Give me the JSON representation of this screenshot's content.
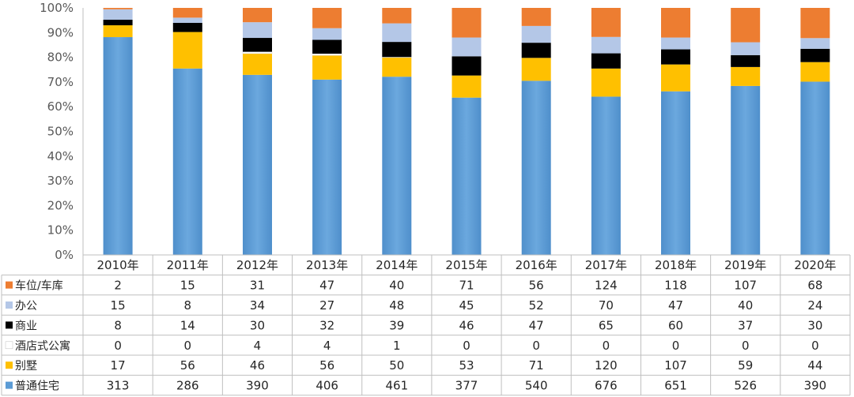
{
  "chart_data": {
    "type": "bar",
    "stacked": "percent",
    "categories": [
      "2010年",
      "2011年",
      "2012年",
      "2013年",
      "2014年",
      "2015年",
      "2016年",
      "2017年",
      "2018年",
      "2019年",
      "2020年"
    ],
    "y_ticks": [
      "0%",
      "10%",
      "20%",
      "30%",
      "40%",
      "50%",
      "60%",
      "70%",
      "80%",
      "90%",
      "100%"
    ],
    "ylim": [
      0,
      100
    ],
    "grid": false,
    "legend_placement": "data-table-left",
    "series": [
      {
        "name": "普通住宅",
        "color": "#5B9BD5",
        "values": [
          313,
          286,
          390,
          406,
          461,
          377,
          540,
          676,
          651,
          526,
          390
        ]
      },
      {
        "name": "别墅",
        "color": "#FFC000",
        "values": [
          17,
          56,
          46,
          56,
          50,
          53,
          71,
          120,
          107,
          59,
          44
        ]
      },
      {
        "name": "酒店式公寓",
        "color": "#FFFFFF",
        "values": [
          0,
          0,
          4,
          4,
          1,
          0,
          0,
          0,
          0,
          0,
          0
        ]
      },
      {
        "name": "商业",
        "color": "#000000",
        "values": [
          8,
          14,
          30,
          32,
          39,
          46,
          47,
          65,
          60,
          37,
          30
        ]
      },
      {
        "name": "办公",
        "color": "#B4C7E7",
        "values": [
          15,
          8,
          34,
          27,
          48,
          45,
          52,
          70,
          47,
          40,
          24
        ]
      },
      {
        "name": "车位/车库",
        "color": "#ED7D31",
        "values": [
          2,
          15,
          31,
          47,
          40,
          71,
          56,
          124,
          118,
          107,
          68
        ]
      }
    ],
    "table_row_order": [
      "车位/车库",
      "办公",
      "商业",
      "酒店式公寓",
      "别墅",
      "普通住宅"
    ]
  }
}
